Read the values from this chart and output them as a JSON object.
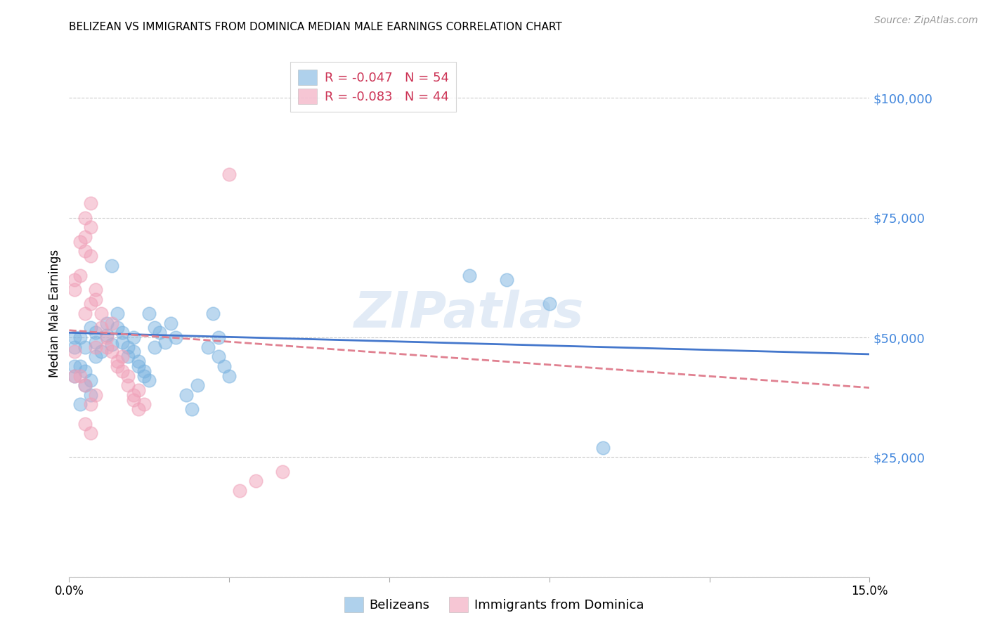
{
  "title": "BELIZEAN VS IMMIGRANTS FROM DOMINICA MEDIAN MALE EARNINGS CORRELATION CHART",
  "source": "Source: ZipAtlas.com",
  "ylabel": "Median Male Earnings",
  "xlim": [
    0,
    0.15
  ],
  "ylim": [
    0,
    110000
  ],
  "yticks": [
    0,
    25000,
    50000,
    75000,
    100000
  ],
  "ytick_labels": [
    "",
    "$25,000",
    "$50,000",
    "$75,000",
    "$100,000"
  ],
  "xticks": [
    0.0,
    0.03,
    0.06,
    0.09,
    0.12,
    0.15
  ],
  "xtick_labels": [
    "0.0%",
    "",
    "",
    "",
    "",
    "15.0%"
  ],
  "legend_entries": [
    {
      "label": "R = -0.047   N = 54",
      "color": "#a8c8f0"
    },
    {
      "label": "R = -0.083   N = 44",
      "color": "#f0a8b8"
    }
  ],
  "legend_bottom": [
    "Belizeans",
    "Immigrants from Dominica"
  ],
  "blue_color": "#7ab3e0",
  "pink_color": "#f0a0b8",
  "trend_blue": "#4477cc",
  "trend_pink": "#e08090",
  "watermark": "ZIPatlas",
  "blue_scatter": [
    [
      0.002,
      50000
    ],
    [
      0.003,
      48000
    ],
    [
      0.004,
      52000
    ],
    [
      0.005,
      49000
    ],
    [
      0.005,
      51000
    ],
    [
      0.006,
      47000
    ],
    [
      0.007,
      53000
    ],
    [
      0.007,
      50500
    ],
    [
      0.008,
      48500
    ],
    [
      0.008,
      65000
    ],
    [
      0.009,
      55000
    ],
    [
      0.009,
      52000
    ],
    [
      0.01,
      49000
    ],
    [
      0.01,
      51000
    ],
    [
      0.011,
      48000
    ],
    [
      0.011,
      46000
    ],
    [
      0.012,
      50000
    ],
    [
      0.012,
      47000
    ],
    [
      0.013,
      45000
    ],
    [
      0.013,
      44000
    ],
    [
      0.014,
      43000
    ],
    [
      0.014,
      42000
    ],
    [
      0.015,
      41000
    ],
    [
      0.015,
      55000
    ],
    [
      0.016,
      52000
    ],
    [
      0.016,
      48000
    ],
    [
      0.017,
      51000
    ],
    [
      0.018,
      49000
    ],
    [
      0.019,
      53000
    ],
    [
      0.02,
      50000
    ],
    [
      0.022,
      38000
    ],
    [
      0.023,
      35000
    ],
    [
      0.024,
      40000
    ],
    [
      0.026,
      48000
    ],
    [
      0.027,
      55000
    ],
    [
      0.028,
      50000
    ],
    [
      0.028,
      46000
    ],
    [
      0.029,
      44000
    ],
    [
      0.03,
      42000
    ],
    [
      0.003,
      40000
    ],
    [
      0.004,
      38000
    ],
    [
      0.002,
      36000
    ],
    [
      0.001,
      48000
    ],
    [
      0.001,
      50000
    ],
    [
      0.002,
      44000
    ],
    [
      0.003,
      43000
    ],
    [
      0.004,
      41000
    ],
    [
      0.005,
      46000
    ],
    [
      0.001,
      44000
    ],
    [
      0.001,
      42000
    ],
    [
      0.075,
      63000
    ],
    [
      0.082,
      62000
    ],
    [
      0.09,
      57000
    ],
    [
      0.1,
      27000
    ]
  ],
  "pink_scatter": [
    [
      0.001,
      62000
    ],
    [
      0.002,
      63000
    ],
    [
      0.003,
      68000
    ],
    [
      0.003,
      75000
    ],
    [
      0.004,
      73000
    ],
    [
      0.004,
      67000
    ],
    [
      0.005,
      60000
    ],
    [
      0.005,
      58000
    ],
    [
      0.006,
      55000
    ],
    [
      0.006,
      52000
    ],
    [
      0.007,
      50000
    ],
    [
      0.007,
      48000
    ],
    [
      0.008,
      53000
    ],
    [
      0.008,
      47000
    ],
    [
      0.009,
      45000
    ],
    [
      0.009,
      44000
    ],
    [
      0.01,
      46000
    ],
    [
      0.01,
      43000
    ],
    [
      0.011,
      42000
    ],
    [
      0.011,
      40000
    ],
    [
      0.012,
      38000
    ],
    [
      0.012,
      37000
    ],
    [
      0.013,
      39000
    ],
    [
      0.013,
      35000
    ],
    [
      0.014,
      36000
    ],
    [
      0.03,
      84000
    ],
    [
      0.032,
      18000
    ],
    [
      0.035,
      20000
    ],
    [
      0.04,
      22000
    ],
    [
      0.002,
      70000
    ],
    [
      0.003,
      71000
    ],
    [
      0.004,
      78000
    ],
    [
      0.001,
      60000
    ],
    [
      0.001,
      47000
    ],
    [
      0.002,
      42000
    ],
    [
      0.003,
      55000
    ],
    [
      0.004,
      57000
    ],
    [
      0.005,
      48000
    ],
    [
      0.003,
      40000
    ],
    [
      0.004,
      36000
    ],
    [
      0.005,
      38000
    ],
    [
      0.003,
      32000
    ],
    [
      0.004,
      30000
    ],
    [
      0.001,
      42000
    ]
  ],
  "title_fontsize": 11,
  "axis_color": "#4488dd",
  "background_color": "#ffffff",
  "trend_blue_intercept": 51000,
  "trend_blue_slope": -30000,
  "trend_pink_intercept": 51500,
  "trend_pink_slope": -80000
}
